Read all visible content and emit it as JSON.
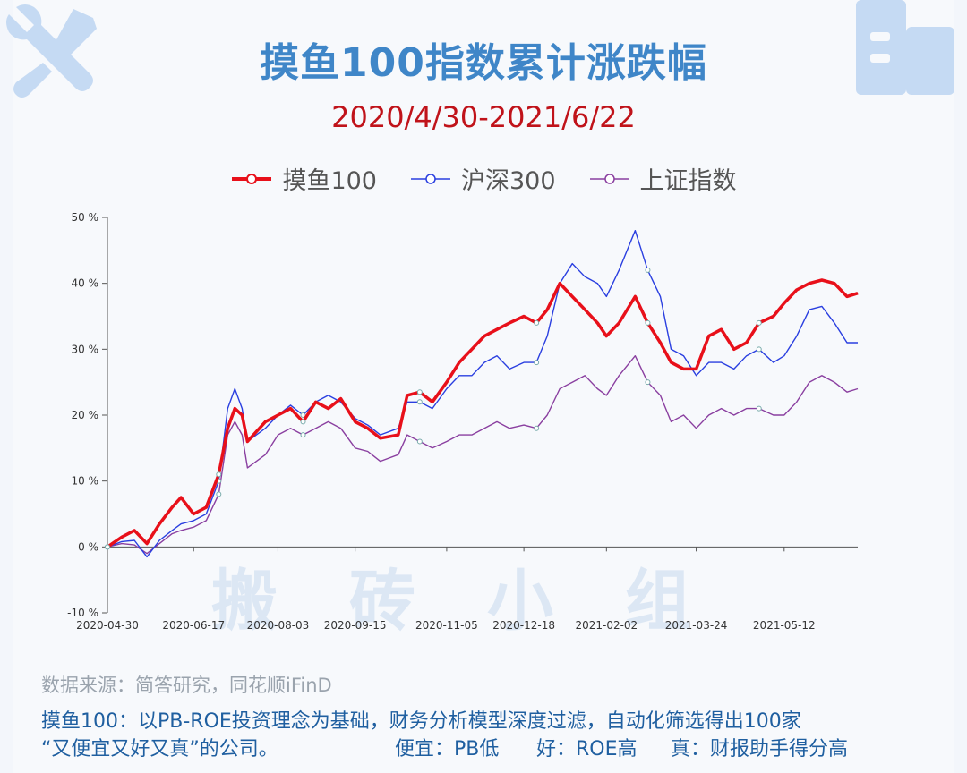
{
  "title": "摸鱼100指数累计涨跌幅",
  "subtitle": "2020/4/30-2021/6/22",
  "watermark": "搬砖小组",
  "source": "数据来源：简答研究，同花顺iFinD",
  "note_line1": "摸鱼100：以PB-ROE投资理念为基础，财务分析模型深度过滤，自动化筛选得出100家",
  "note_line2_a": "“又便宜又好又真”的公司。",
  "note_line2_b": "便宜：PB低",
  "note_line2_c": "好：ROE高",
  "note_line2_d": "真：财报助手得分高",
  "colors": {
    "moyu": "#e8101a",
    "hs300": "#2a3fe0",
    "sh": "#8a3fa0",
    "title": "#3f86c8",
    "subtitle": "#c0131a"
  },
  "icons": [
    "tools-icon",
    "building-icon"
  ],
  "chart_data": {
    "type": "line",
    "title": "摸鱼100指数累计涨跌幅",
    "subtitle": "2020/4/30-2021/6/22",
    "xlabel": "",
    "ylabel": "",
    "y_unit": "%",
    "ylim": [
      -10,
      50
    ],
    "y_ticks": [
      -10,
      0,
      10,
      20,
      30,
      40,
      50
    ],
    "y_tick_labels": [
      "-10 %",
      "0 %",
      "10 %",
      "20 %",
      "30 %",
      "40 %",
      "50 %"
    ],
    "x_tick_labels": [
      "2020-04-30",
      "2020-06-17",
      "2020-08-03",
      "2020-09-15",
      "2020-11-05",
      "2020-12-18",
      "2021-02-02",
      "2021-03-24",
      "2021-05-12"
    ],
    "x_tick_dates": [
      "2020-04-30",
      "2020-06-17",
      "2020-08-03",
      "2020-09-15",
      "2020-11-05",
      "2020-12-18",
      "2021-02-02",
      "2021-03-24",
      "2021-05-12"
    ],
    "x_range": [
      "2020-04-30",
      "2021-06-22"
    ],
    "legend_position": "top",
    "grid": false,
    "series": [
      {
        "name": "摸鱼100",
        "color": "#e8101a",
        "points": [
          [
            "2020-04-30",
            0
          ],
          [
            "2020-05-08",
            1.5
          ],
          [
            "2020-05-15",
            2.5
          ],
          [
            "2020-05-22",
            0.5
          ],
          [
            "2020-05-29",
            3.5
          ],
          [
            "2020-06-05",
            6
          ],
          [
            "2020-06-10",
            7.5
          ],
          [
            "2020-06-17",
            5
          ],
          [
            "2020-06-24",
            6
          ],
          [
            "2020-07-01",
            11
          ],
          [
            "2020-07-06",
            18
          ],
          [
            "2020-07-10",
            21
          ],
          [
            "2020-07-14",
            20
          ],
          [
            "2020-07-17",
            16
          ],
          [
            "2020-07-22",
            17.5
          ],
          [
            "2020-07-27",
            19
          ],
          [
            "2020-08-03",
            20
          ],
          [
            "2020-08-10",
            21
          ],
          [
            "2020-08-17",
            19
          ],
          [
            "2020-08-24",
            22
          ],
          [
            "2020-08-31",
            21
          ],
          [
            "2020-09-07",
            22.5
          ],
          [
            "2020-09-15",
            19
          ],
          [
            "2020-09-22",
            18
          ],
          [
            "2020-09-29",
            16.5
          ],
          [
            "2020-10-09",
            17
          ],
          [
            "2020-10-14",
            23
          ],
          [
            "2020-10-21",
            23.5
          ],
          [
            "2020-10-28",
            22
          ],
          [
            "2020-11-05",
            25
          ],
          [
            "2020-11-12",
            28
          ],
          [
            "2020-11-19",
            30
          ],
          [
            "2020-11-26",
            32
          ],
          [
            "2020-12-03",
            33
          ],
          [
            "2020-12-10",
            34
          ],
          [
            "2020-12-18",
            35
          ],
          [
            "2020-12-25",
            34
          ],
          [
            "2020-12-31",
            36
          ],
          [
            "2021-01-07",
            40
          ],
          [
            "2021-01-14",
            38
          ],
          [
            "2021-01-21",
            36
          ],
          [
            "2021-01-28",
            34
          ],
          [
            "2021-02-02",
            32
          ],
          [
            "2021-02-09",
            34
          ],
          [
            "2021-02-18",
            38
          ],
          [
            "2021-02-25",
            34
          ],
          [
            "2021-03-04",
            31
          ],
          [
            "2021-03-10",
            28
          ],
          [
            "2021-03-17",
            27
          ],
          [
            "2021-03-24",
            27
          ],
          [
            "2021-03-31",
            32
          ],
          [
            "2021-04-07",
            33
          ],
          [
            "2021-04-14",
            30
          ],
          [
            "2021-04-21",
            31
          ],
          [
            "2021-04-28",
            34
          ],
          [
            "2021-05-06",
            35
          ],
          [
            "2021-05-12",
            37
          ],
          [
            "2021-05-19",
            39
          ],
          [
            "2021-05-26",
            40
          ],
          [
            "2021-06-02",
            40.5
          ],
          [
            "2021-06-09",
            40
          ],
          [
            "2021-06-16",
            38
          ],
          [
            "2021-06-22",
            38.5
          ]
        ]
      },
      {
        "name": "沪深300",
        "color": "#2a3fe0",
        "points": [
          [
            "2020-04-30",
            0
          ],
          [
            "2020-05-08",
            0.8
          ],
          [
            "2020-05-15",
            1
          ],
          [
            "2020-05-22",
            -1.5
          ],
          [
            "2020-05-29",
            1
          ],
          [
            "2020-06-05",
            2.5
          ],
          [
            "2020-06-10",
            3.5
          ],
          [
            "2020-06-17",
            4
          ],
          [
            "2020-06-24",
            5
          ],
          [
            "2020-07-01",
            10
          ],
          [
            "2020-07-06",
            21
          ],
          [
            "2020-07-10",
            24
          ],
          [
            "2020-07-14",
            21
          ],
          [
            "2020-07-17",
            16
          ],
          [
            "2020-07-22",
            17
          ],
          [
            "2020-07-27",
            18
          ],
          [
            "2020-08-03",
            20
          ],
          [
            "2020-08-10",
            21.5
          ],
          [
            "2020-08-17",
            20
          ],
          [
            "2020-08-24",
            22
          ],
          [
            "2020-08-31",
            23
          ],
          [
            "2020-09-07",
            22
          ],
          [
            "2020-09-15",
            19.5
          ],
          [
            "2020-09-22",
            18.5
          ],
          [
            "2020-09-29",
            17
          ],
          [
            "2020-10-09",
            18
          ],
          [
            "2020-10-14",
            22
          ],
          [
            "2020-10-21",
            22
          ],
          [
            "2020-10-28",
            21
          ],
          [
            "2020-11-05",
            24
          ],
          [
            "2020-11-12",
            26
          ],
          [
            "2020-11-19",
            26
          ],
          [
            "2020-11-26",
            28
          ],
          [
            "2020-12-03",
            29
          ],
          [
            "2020-12-10",
            27
          ],
          [
            "2020-12-18",
            28
          ],
          [
            "2020-12-25",
            28
          ],
          [
            "2020-12-31",
            32
          ],
          [
            "2021-01-07",
            40
          ],
          [
            "2021-01-14",
            43
          ],
          [
            "2021-01-21",
            41
          ],
          [
            "2021-01-28",
            40
          ],
          [
            "2021-02-02",
            38
          ],
          [
            "2021-02-09",
            42
          ],
          [
            "2021-02-18",
            48
          ],
          [
            "2021-02-25",
            42
          ],
          [
            "2021-03-04",
            38
          ],
          [
            "2021-03-10",
            30
          ],
          [
            "2021-03-17",
            29
          ],
          [
            "2021-03-24",
            26
          ],
          [
            "2021-03-31",
            28
          ],
          [
            "2021-04-07",
            28
          ],
          [
            "2021-04-14",
            27
          ],
          [
            "2021-04-21",
            29
          ],
          [
            "2021-04-28",
            30
          ],
          [
            "2021-05-06",
            28
          ],
          [
            "2021-05-12",
            29
          ],
          [
            "2021-05-19",
            32
          ],
          [
            "2021-05-26",
            36
          ],
          [
            "2021-06-02",
            36.5
          ],
          [
            "2021-06-09",
            34
          ],
          [
            "2021-06-16",
            31
          ],
          [
            "2021-06-22",
            31
          ]
        ]
      },
      {
        "name": "上证指数",
        "color": "#8a3fa0",
        "points": [
          [
            "2020-04-30",
            0
          ],
          [
            "2020-05-08",
            0.5
          ],
          [
            "2020-05-15",
            0.3
          ],
          [
            "2020-05-22",
            -1
          ],
          [
            "2020-05-29",
            0.5
          ],
          [
            "2020-06-05",
            2
          ],
          [
            "2020-06-10",
            2.5
          ],
          [
            "2020-06-17",
            3
          ],
          [
            "2020-06-24",
            4
          ],
          [
            "2020-07-01",
            8
          ],
          [
            "2020-07-06",
            17
          ],
          [
            "2020-07-10",
            19
          ],
          [
            "2020-07-14",
            17
          ],
          [
            "2020-07-17",
            12
          ],
          [
            "2020-07-22",
            13
          ],
          [
            "2020-07-27",
            14
          ],
          [
            "2020-08-03",
            17
          ],
          [
            "2020-08-10",
            18
          ],
          [
            "2020-08-17",
            17
          ],
          [
            "2020-08-24",
            18
          ],
          [
            "2020-08-31",
            19
          ],
          [
            "2020-09-07",
            18
          ],
          [
            "2020-09-15",
            15
          ],
          [
            "2020-09-22",
            14.5
          ],
          [
            "2020-09-29",
            13
          ],
          [
            "2020-10-09",
            14
          ],
          [
            "2020-10-14",
            17
          ],
          [
            "2020-10-21",
            16
          ],
          [
            "2020-10-28",
            15
          ],
          [
            "2020-11-05",
            16
          ],
          [
            "2020-11-12",
            17
          ],
          [
            "2020-11-19",
            17
          ],
          [
            "2020-11-26",
            18
          ],
          [
            "2020-12-03",
            19
          ],
          [
            "2020-12-10",
            18
          ],
          [
            "2020-12-18",
            18.5
          ],
          [
            "2020-12-25",
            18
          ],
          [
            "2020-12-31",
            20
          ],
          [
            "2021-01-07",
            24
          ],
          [
            "2021-01-14",
            25
          ],
          [
            "2021-01-21",
            26
          ],
          [
            "2021-01-28",
            24
          ],
          [
            "2021-02-02",
            23
          ],
          [
            "2021-02-09",
            26
          ],
          [
            "2021-02-18",
            29
          ],
          [
            "2021-02-25",
            25
          ],
          [
            "2021-03-04",
            23
          ],
          [
            "2021-03-10",
            19
          ],
          [
            "2021-03-17",
            20
          ],
          [
            "2021-03-24",
            18
          ],
          [
            "2021-03-31",
            20
          ],
          [
            "2021-04-07",
            21
          ],
          [
            "2021-04-14",
            20
          ],
          [
            "2021-04-21",
            21
          ],
          [
            "2021-04-28",
            21
          ],
          [
            "2021-05-06",
            20
          ],
          [
            "2021-05-12",
            20
          ],
          [
            "2021-05-19",
            22
          ],
          [
            "2021-05-26",
            25
          ],
          [
            "2021-06-02",
            26
          ],
          [
            "2021-06-09",
            25
          ],
          [
            "2021-06-16",
            23.5
          ],
          [
            "2021-06-22",
            24
          ]
        ]
      }
    ]
  }
}
